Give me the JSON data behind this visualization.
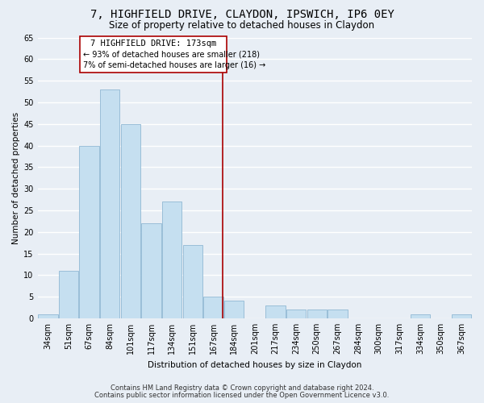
{
  "title": "7, HIGHFIELD DRIVE, CLAYDON, IPSWICH, IP6 0EY",
  "subtitle": "Size of property relative to detached houses in Claydon",
  "xlabel": "Distribution of detached houses by size in Claydon",
  "ylabel": "Number of detached properties",
  "categories": [
    "34sqm",
    "51sqm",
    "67sqm",
    "84sqm",
    "101sqm",
    "117sqm",
    "134sqm",
    "151sqm",
    "167sqm",
    "184sqm",
    "201sqm",
    "217sqm",
    "234sqm",
    "250sqm",
    "267sqm",
    "284sqm",
    "300sqm",
    "317sqm",
    "334sqm",
    "350sqm",
    "367sqm"
  ],
  "values": [
    1,
    11,
    40,
    53,
    45,
    22,
    27,
    17,
    5,
    4,
    0,
    3,
    2,
    2,
    2,
    0,
    0,
    0,
    1,
    0,
    1
  ],
  "bar_color": "#c5dff0",
  "bar_edgecolor": "#90b8d4",
  "vline_x_index": 8.45,
  "vline_color": "#aa0000",
  "ylim": [
    0,
    65
  ],
  "yticks": [
    0,
    5,
    10,
    15,
    20,
    25,
    30,
    35,
    40,
    45,
    50,
    55,
    60,
    65
  ],
  "annotation_title": "7 HIGHFIELD DRIVE: 173sqm",
  "annotation_line1": "← 93% of detached houses are smaller (218)",
  "annotation_line2": "7% of semi-detached houses are larger (16) →",
  "annotation_box_facecolor": "#ffffff",
  "annotation_box_edgecolor": "#aa0000",
  "footer_line1": "Contains HM Land Registry data © Crown copyright and database right 2024.",
  "footer_line2": "Contains public sector information licensed under the Open Government Licence v3.0.",
  "background_color": "#e8eef5",
  "grid_color": "#ffffff",
  "title_fontsize": 10,
  "subtitle_fontsize": 8.5,
  "axis_fontsize": 7.5,
  "tick_fontsize": 7,
  "footer_fontsize": 6
}
